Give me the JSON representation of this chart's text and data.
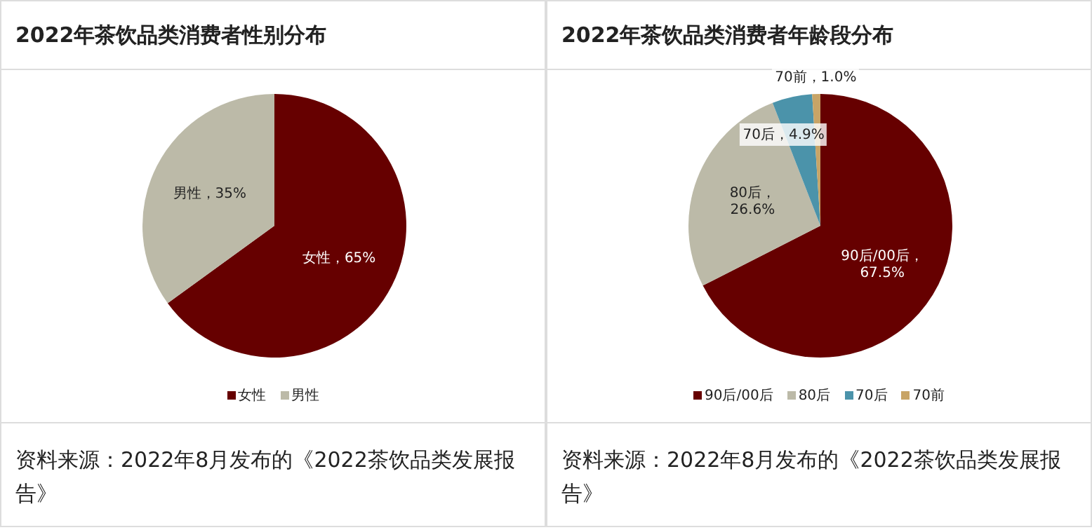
{
  "chart_data": [
    {
      "type": "pie",
      "title": "2022年茶饮品类消费者性别分布",
      "categories": [
        "女性",
        "男性"
      ],
      "values": [
        65,
        35
      ],
      "colors": [
        "#660000",
        "#bcbaa8"
      ],
      "value_labels": [
        "女性，65%",
        "男性，35%"
      ],
      "legend": "bottom",
      "annotations": [
        "资料来源：2022年8月发布的《2022茶饮品类发展报告》"
      ]
    },
    {
      "type": "pie",
      "title": "2022年茶饮品类消费者年龄段分布",
      "categories": [
        "90后/00后",
        "80后",
        "70后",
        "70前"
      ],
      "values": [
        67.5,
        26.6,
        4.9,
        1.0
      ],
      "colors": [
        "#660000",
        "#bcbaa8",
        "#4b93aa",
        "#c8a466"
      ],
      "value_labels": [
        "90后/00后，67.5%",
        "80后，26.6%",
        "70后，4.9%",
        "70前，1.0%"
      ],
      "legend": "bottom",
      "annotations": [
        "资料来源：2022年8月发布的《2022茶饮品类发展报告》"
      ]
    }
  ]
}
